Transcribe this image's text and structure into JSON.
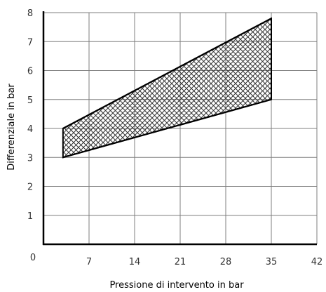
{
  "chart_data": {
    "type": "area",
    "title": "",
    "xlabel": "Pressione di intervento in bar",
    "ylabel": "Differenziale in bar",
    "xlim": [
      0,
      42
    ],
    "ylim": [
      0,
      8
    ],
    "xticks": [
      7,
      14,
      21,
      28,
      35,
      42
    ],
    "yticks": [
      1,
      2,
      3,
      4,
      5,
      6,
      7,
      8
    ],
    "origin_label": "0",
    "grid": true,
    "fill_pattern": "crosshatch",
    "colors": {
      "line": "#000000",
      "grid": "#7f7f7f",
      "hatch": "#333333"
    },
    "series": [
      {
        "role": "upper",
        "x": [
          3,
          35
        ],
        "y": [
          4,
          7.8
        ]
      },
      {
        "role": "lower",
        "x": [
          3,
          35
        ],
        "y": [
          3,
          5
        ]
      }
    ]
  }
}
